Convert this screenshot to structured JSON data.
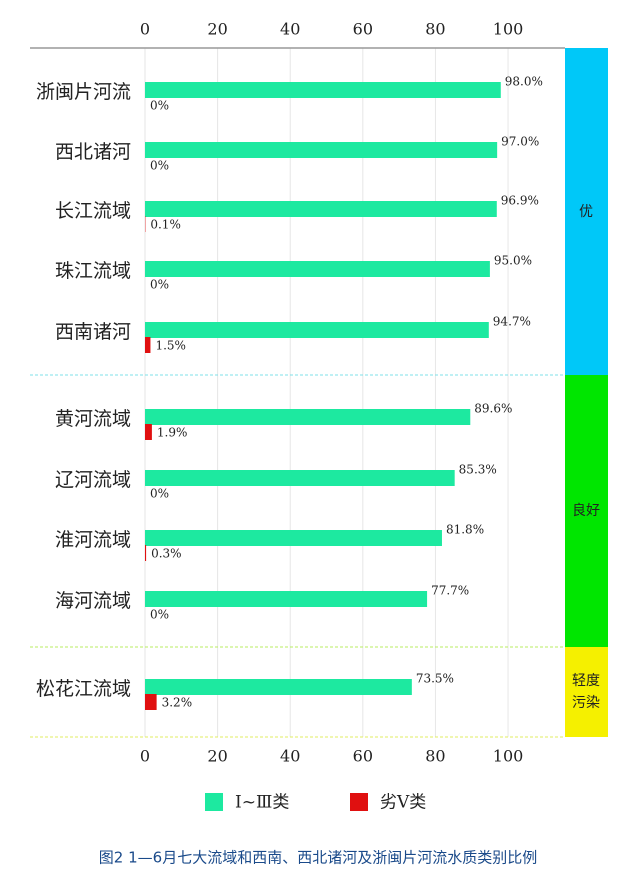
{
  "chart_data": {
    "type": "bar",
    "orientation": "horizontal",
    "title": "图2  1—6月七大流域和西南、西北诸河及浙闽片河流水质类别比例",
    "categories": [
      "浙闽片河流",
      "西北诸河",
      "长江流域",
      "珠江流域",
      "西南诸河",
      "黄河流域",
      "辽河流域",
      "淮河流域",
      "海河流域",
      "松花江流域"
    ],
    "series": [
      {
        "name": "Ⅰ~Ⅲ类",
        "color": "#1de9a0",
        "values": [
          98.0,
          97.0,
          96.9,
          95.0,
          94.7,
          89.6,
          85.3,
          81.8,
          77.7,
          73.5
        ],
        "value_labels": [
          "98.0%",
          "97.0%",
          "96.9%",
          "95.0%",
          "94.7%",
          "89.6%",
          "85.3%",
          "81.8%",
          "77.7%",
          "73.5%"
        ]
      },
      {
        "name": "劣Ⅴ类",
        "color": "#e01010",
        "values": [
          0,
          0,
          0.1,
          0,
          1.5,
          1.9,
          0,
          0.3,
          0,
          3.2
        ],
        "value_labels": [
          "0%",
          "0%",
          "0.1%",
          "0%",
          "1.5%",
          "1.9%",
          "0%",
          "0.3%",
          "0%",
          "3.2%"
        ]
      }
    ],
    "groups": [
      {
        "name": "优",
        "color": "#00c8f8"
      },
      {
        "name": "良好",
        "color": "#00e600"
      },
      {
        "name": "轻度污染",
        "color": "#f5f000"
      }
    ],
    "xlim": [
      0,
      115
    ],
    "xticks": [
      0,
      20,
      40,
      60,
      80,
      100
    ],
    "grid": true
  }
}
